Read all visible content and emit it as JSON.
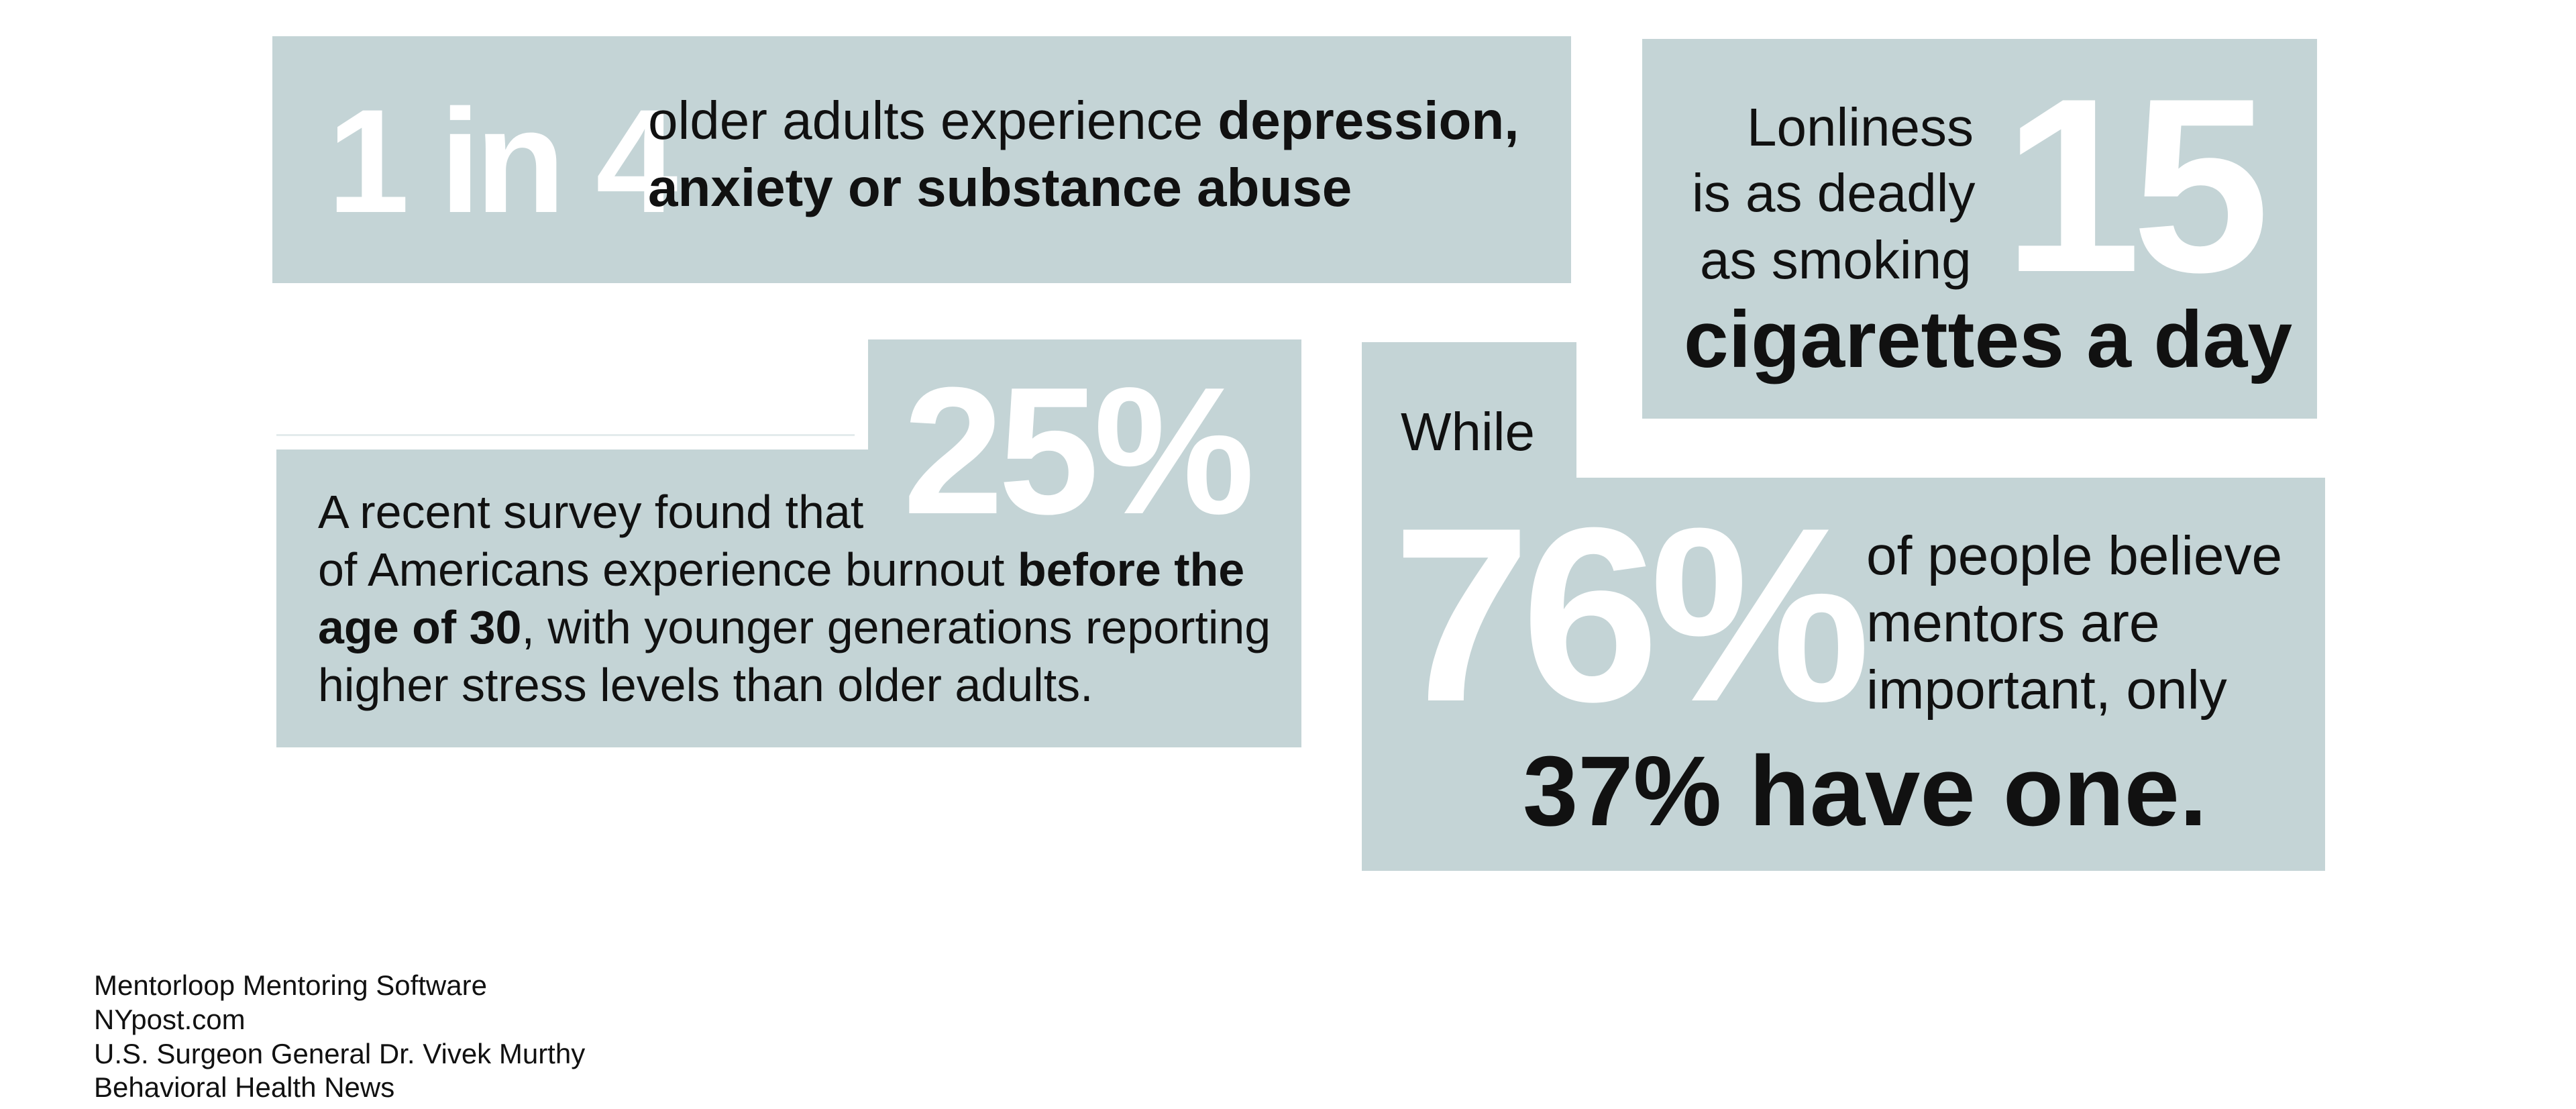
{
  "card_depression": {
    "stat": "1 in 4",
    "line1_text": "older adults experience ",
    "line1_bold": "depression,",
    "line2_bold": "anxiety or substance abuse"
  },
  "card_loneliness": {
    "stat": "15",
    "line1": "Lonliness",
    "line2": "is as deadly",
    "line3": "as smoking",
    "line4": "cigarettes a day"
  },
  "card_burnout": {
    "stat": "25%",
    "line1": "A recent survey found that",
    "line2_text": "of Americans experience burnout ",
    "line2_bold": "before the",
    "line3_bold": "age of 30",
    "line3_text": ", with younger generations reporting",
    "line4": "higher stress levels than older adults."
  },
  "card_mentors": {
    "while": "While",
    "stat": "76%",
    "line1": "of people believe",
    "line2": "mentors are",
    "line3": "important, only",
    "line4": "37% have one."
  },
  "sources": [
    "Mentorloop Mentoring Software",
    "NYpost.com",
    "U.S. Surgeon General Dr. Vivek Murthy",
    "Behavioral Health News"
  ],
  "colors": {
    "panel": "#c4d4d6",
    "stat": "#ffffff",
    "text": "#111111"
  }
}
